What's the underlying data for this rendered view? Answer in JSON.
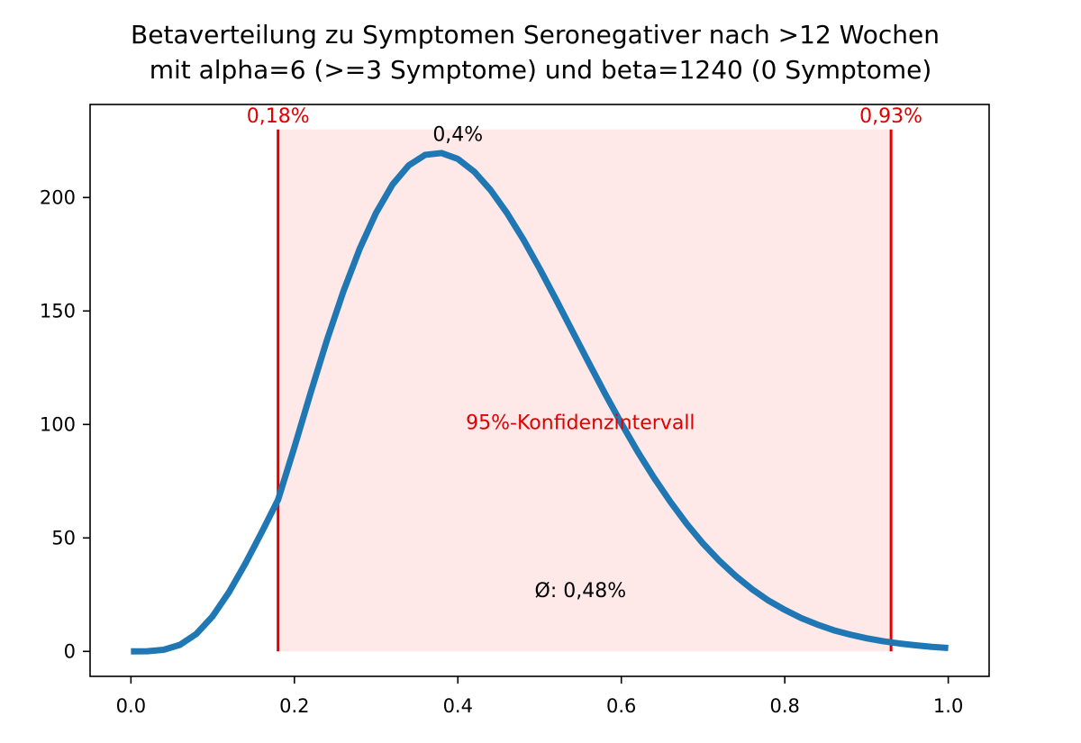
{
  "chart_data": {
    "type": "line",
    "title_line1": "Betaverteilung zu Symptomen Seronegativer nach >12 Wochen",
    "title_line2": "mit alpha=6 (>=3 Symptome) und beta=1240 (0 Symptome)",
    "xlabel": "",
    "ylabel": "",
    "xlim": [
      -0.05,
      1.05
    ],
    "ylim": [
      -11,
      241
    ],
    "xticks": [
      0.0,
      0.2,
      0.4,
      0.6,
      0.8,
      1.0
    ],
    "xtick_labels": [
      "0.0",
      "0.2",
      "0.4",
      "0.6",
      "0.8",
      "1.0"
    ],
    "yticks": [
      0,
      50,
      100,
      150,
      200
    ],
    "ytick_labels": [
      "0",
      "50",
      "100",
      "150",
      "200"
    ],
    "grid": false,
    "series": [
      {
        "color": "#1f77b4",
        "x": [
          0.0,
          0.02,
          0.04,
          0.06,
          0.08,
          0.1,
          0.12,
          0.14,
          0.16,
          0.18,
          0.2,
          0.22,
          0.24,
          0.26,
          0.28,
          0.3,
          0.32,
          0.34,
          0.36,
          0.38,
          0.4,
          0.42,
          0.44,
          0.46,
          0.48,
          0.5,
          0.52,
          0.54,
          0.56,
          0.58,
          0.6,
          0.62,
          0.64,
          0.66,
          0.68,
          0.7,
          0.72,
          0.74,
          0.76,
          0.78,
          0.8,
          0.82,
          0.84,
          0.86,
          0.88,
          0.9,
          0.92,
          0.94,
          0.96,
          0.98,
          1.0
        ],
        "y": [
          0,
          0.075,
          0.7,
          2.89,
          7.7,
          15.5,
          26.1,
          38.7,
          52.5,
          66.8,
          90.0,
          114.1,
          137.4,
          158.7,
          177.5,
          193.3,
          205.7,
          214.2,
          218.8,
          219.6,
          217.0,
          211.4,
          203.3,
          193.2,
          181.6,
          168.7,
          155.1,
          141.2,
          127.3,
          113.6,
          100.5,
          88.0,
          76.5,
          65.9,
          56.2,
          47.5,
          39.9,
          33.2,
          27.4,
          22.4,
          18.3,
          14.7,
          11.8,
          9.3,
          7.4,
          5.8,
          4.5,
          3.5,
          2.7,
          2.0,
          1.5
        ]
      }
    ],
    "ci_band": {
      "x0": 0.18,
      "x1": 0.93,
      "y_top": 230,
      "fill": "#ffe8e8",
      "line_color": "#e00000"
    },
    "annotations": {
      "ci_lower_label": "0,18%",
      "ci_upper_label": "0,93%",
      "mode_label": "0,4%",
      "ci_label": "95%-Konfidenzintervall",
      "mean_label": "Ø: 0,48%"
    }
  }
}
